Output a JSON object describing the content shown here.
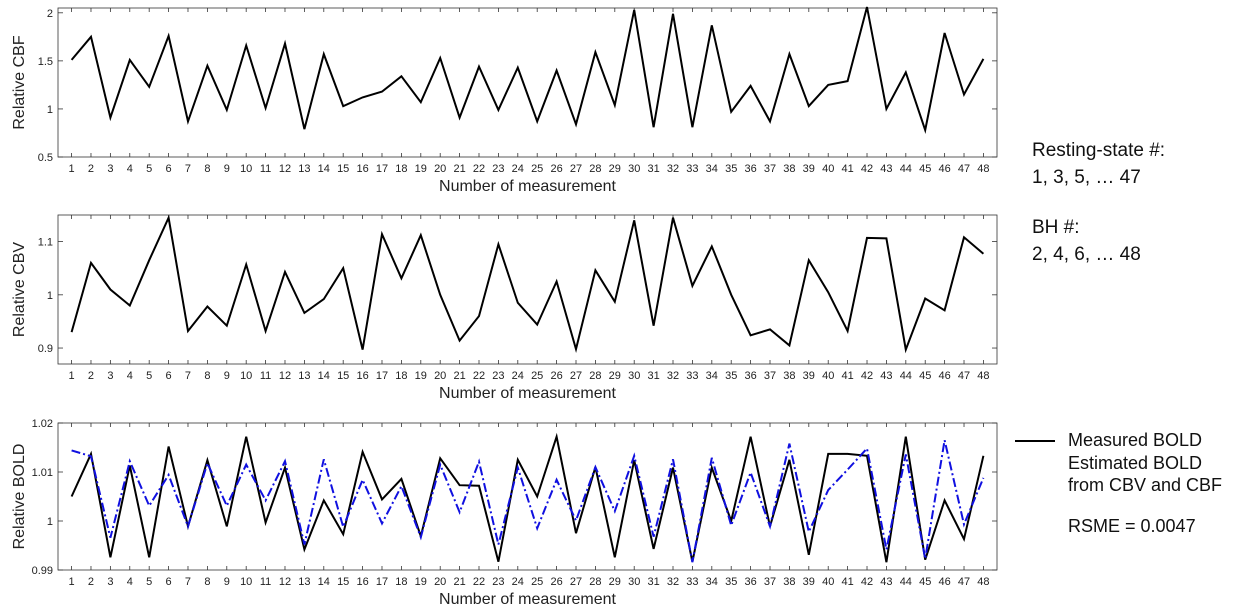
{
  "chart_data": [
    {
      "type": "line",
      "xlabel": "Number of measurement",
      "ylabel": "Relative CBF",
      "ylim": [
        0.5,
        2.05
      ],
      "yticks": [
        "0.5",
        "1",
        "1.5",
        "2"
      ],
      "ytick_values": [
        0.5,
        1,
        1.5,
        2
      ],
      "x": [
        1,
        2,
        3,
        4,
        5,
        6,
        7,
        8,
        9,
        10,
        11,
        12,
        13,
        14,
        15,
        16,
        17,
        18,
        19,
        20,
        21,
        22,
        23,
        24,
        25,
        26,
        27,
        28,
        29,
        30,
        31,
        32,
        33,
        34,
        35,
        36,
        37,
        38,
        39,
        40,
        41,
        42,
        43,
        44,
        45,
        46,
        47,
        48
      ],
      "series": [
        {
          "color": "#000000",
          "values": [
            1.51,
            1.75,
            0.91,
            1.51,
            1.23,
            1.76,
            0.87,
            1.45,
            0.99,
            1.66,
            1.01,
            1.68,
            0.79,
            1.57,
            1.03,
            1.12,
            1.18,
            1.34,
            1.07,
            1.53,
            0.91,
            1.44,
            0.99,
            1.43,
            0.87,
            1.4,
            0.84,
            1.59,
            1.04,
            2.03,
            0.81,
            1.99,
            0.81,
            1.87,
            0.97,
            1.24,
            0.87,
            1.57,
            1.03,
            1.25,
            1.29,
            2.06,
            1.0,
            1.38,
            0.78,
            1.79,
            1.15,
            1.52
          ]
        }
      ]
    },
    {
      "type": "line",
      "xlabel": "Number of measurement",
      "ylabel": "Relative CBV",
      "ylim": [
        0.87,
        1.15
      ],
      "yticks": [
        "0.9",
        "1",
        "1.1"
      ],
      "ytick_values": [
        0.9,
        1.0,
        1.1
      ],
      "x": [
        1,
        2,
        3,
        4,
        5,
        6,
        7,
        8,
        9,
        10,
        11,
        12,
        13,
        14,
        15,
        16,
        17,
        18,
        19,
        20,
        21,
        22,
        23,
        24,
        25,
        26,
        27,
        28,
        29,
        30,
        31,
        32,
        33,
        34,
        35,
        36,
        37,
        38,
        39,
        40,
        41,
        42,
        43,
        44,
        45,
        46,
        47,
        48
      ],
      "series": [
        {
          "color": "#000000",
          "values": [
            0.93,
            1.06,
            1.01,
            0.98,
            1.065,
            1.145,
            0.932,
            0.978,
            0.942,
            1.057,
            0.932,
            1.043,
            0.966,
            0.992,
            1.05,
            0.897,
            1.114,
            1.031,
            1.112,
            1.0,
            0.914,
            0.96,
            1.095,
            0.985,
            0.944,
            1.025,
            0.898,
            1.046,
            0.987,
            1.14,
            0.942,
            1.145,
            1.017,
            1.091,
            1.0,
            0.924,
            0.935,
            0.905,
            1.065,
            1.005,
            0.932,
            1.107,
            1.106,
            0.897,
            0.993,
            0.971,
            1.108,
            1.077
          ]
        }
      ]
    },
    {
      "type": "line",
      "xlabel": "Number of measurement",
      "ylabel": "Relative BOLD",
      "ylim": [
        0.99,
        1.02
      ],
      "yticks": [
        "0.99",
        "1",
        "1.01",
        "1.02"
      ],
      "ytick_values": [
        0.99,
        1.0,
        1.01,
        1.02
      ],
      "x": [
        1,
        2,
        3,
        4,
        5,
        6,
        7,
        8,
        9,
        10,
        11,
        12,
        13,
        14,
        15,
        16,
        17,
        18,
        19,
        20,
        21,
        22,
        23,
        24,
        25,
        26,
        27,
        28,
        29,
        30,
        31,
        32,
        33,
        34,
        35,
        36,
        37,
        38,
        39,
        40,
        41,
        42,
        43,
        44,
        45,
        46,
        47,
        48
      ],
      "series": [
        {
          "name": "Measured BOLD",
          "color": "#000000",
          "style": "solid",
          "values": [
            1.005,
            1.0137,
            0.9926,
            1.0113,
            0.9926,
            1.0152,
            0.9989,
            1.0124,
            0.9989,
            1.0172,
            0.9997,
            1.0109,
            0.9942,
            1.0042,
            0.9973,
            1.0141,
            1.0044,
            1.0086,
            0.9969,
            1.0128,
            1.0073,
            1.0072,
            0.9917,
            1.0125,
            1.005,
            1.0172,
            0.9975,
            1.011,
            0.9926,
            1.0124,
            0.9943,
            1.0109,
            0.9917,
            1.0109,
            1.0,
            1.0172,
            0.9989,
            1.0125,
            0.9931,
            1.0137,
            1.0137,
            1.0133,
            0.9916,
            1.0172,
            0.9921,
            1.0042,
            0.9963,
            1.0133
          ]
        },
        {
          "name": "Estimated BOLD\nfrom CBV and CBF",
          "color": "#1010e0",
          "style": "dashdot",
          "values": [
            1.0144,
            1.0132,
            0.9966,
            1.0122,
            1.0031,
            1.0094,
            0.9989,
            1.0118,
            1.0031,
            1.0115,
            1.0042,
            1.0122,
            0.9952,
            1.0126,
            0.9988,
            1.0084,
            0.9995,
            1.0071,
            0.9967,
            1.0115,
            1.0018,
            1.0121,
            0.9952,
            1.0109,
            0.9985,
            1.0084,
            1.0001,
            1.011,
            1.002,
            1.0133,
            0.9968,
            1.0126,
            0.9916,
            1.0129,
            0.9991,
            1.0099,
            0.9989,
            1.0158,
            0.9978,
            1.0063,
            1.0105,
            1.0148,
            0.9942,
            1.0136,
            0.9923,
            1.0165,
            0.9993,
            1.0088
          ]
        }
      ],
      "legend_position": "right"
    }
  ],
  "side_text": {
    "resting_label": "Resting-state #:",
    "resting_values": "1, 3, 5, … 47",
    "bh_label": "BH #:",
    "bh_values": "2, 4, 6, … 48",
    "rsme": "RSME = 0.0047"
  }
}
